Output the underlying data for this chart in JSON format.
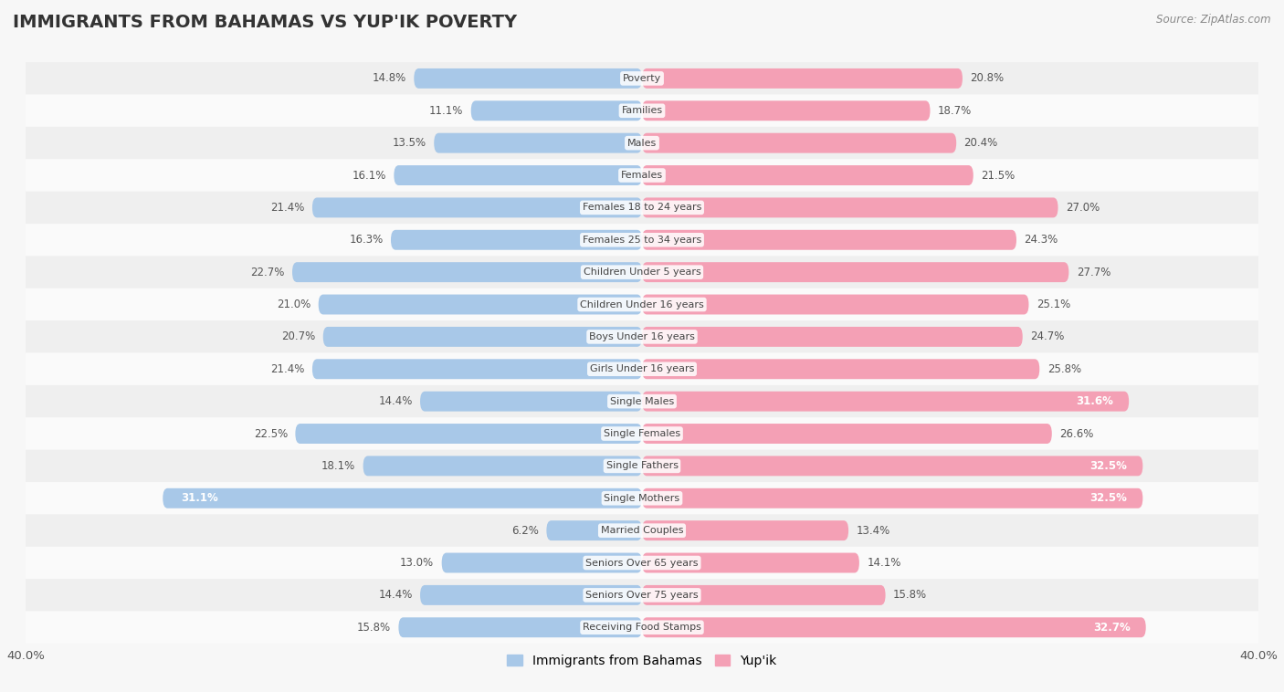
{
  "title": "IMMIGRANTS FROM BAHAMAS VS YUP'IK POVERTY",
  "source": "Source: ZipAtlas.com",
  "categories": [
    "Poverty",
    "Families",
    "Males",
    "Females",
    "Females 18 to 24 years",
    "Females 25 to 34 years",
    "Children Under 5 years",
    "Children Under 16 years",
    "Boys Under 16 years",
    "Girls Under 16 years",
    "Single Males",
    "Single Females",
    "Single Fathers",
    "Single Mothers",
    "Married Couples",
    "Seniors Over 65 years",
    "Seniors Over 75 years",
    "Receiving Food Stamps"
  ],
  "bahamas_values": [
    14.8,
    11.1,
    13.5,
    16.1,
    21.4,
    16.3,
    22.7,
    21.0,
    20.7,
    21.4,
    14.4,
    22.5,
    18.1,
    31.1,
    6.2,
    13.0,
    14.4,
    15.8
  ],
  "yupik_values": [
    20.8,
    18.7,
    20.4,
    21.5,
    27.0,
    24.3,
    27.7,
    25.1,
    24.7,
    25.8,
    31.6,
    26.6,
    32.5,
    32.5,
    13.4,
    14.1,
    15.8,
    32.7
  ],
  "bahamas_color": "#a8c8e8",
  "yupik_color": "#f4a0b5",
  "axis_limit": 40.0,
  "background_color": "#f7f7f7",
  "row_even_color": "#efefef",
  "row_odd_color": "#fafafa",
  "bar_height": 0.62,
  "label_fontsize": 8.0,
  "value_fontsize": 8.5,
  "title_fontsize": 14,
  "legend_fontsize": 10
}
